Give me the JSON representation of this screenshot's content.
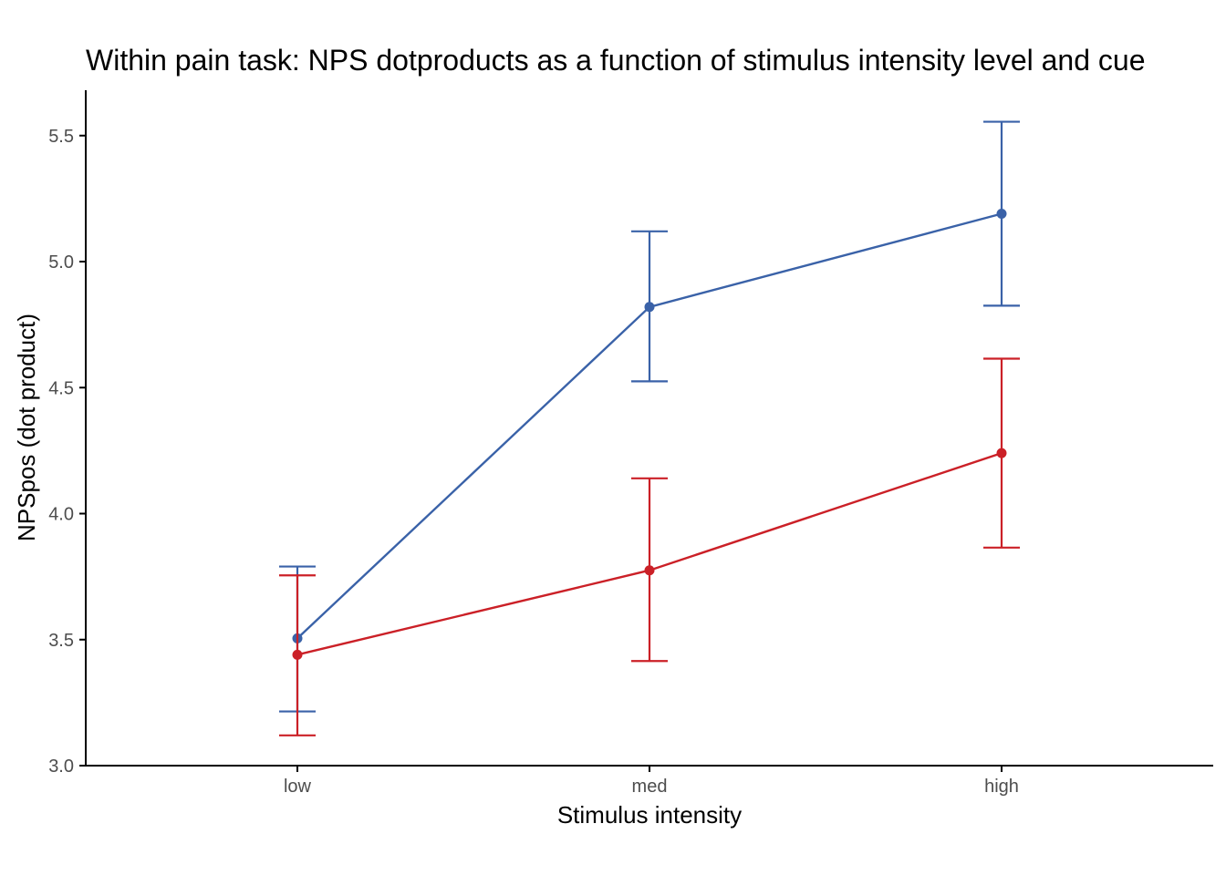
{
  "chart_data": {
    "type": "line",
    "title": "Within pain task: NPS dotproducts as a function of stimulus intensity level and cue",
    "xlabel": "Stimulus intensity",
    "ylabel": "NPSpos (dot product)",
    "categories": [
      "low",
      "med",
      "high"
    ],
    "ylim": [
      3.0,
      5.68
    ],
    "yticks": [
      3.0,
      3.5,
      4.0,
      4.5,
      5.0,
      5.5
    ],
    "ytick_labels": [
      "3.0",
      "3.5",
      "4.0",
      "4.5",
      "5.0",
      "5.5"
    ],
    "grid": false,
    "legend": "none",
    "series": [
      {
        "color": "#3a62a8",
        "values": [
          3.505,
          4.82,
          5.19
        ],
        "lower": [
          3.215,
          4.525,
          4.825
        ],
        "upper": [
          3.79,
          5.12,
          5.555
        ]
      },
      {
        "color": "#cb2027",
        "values": [
          3.44,
          3.775,
          4.24
        ],
        "lower": [
          3.12,
          3.415,
          3.865
        ],
        "upper": [
          3.755,
          4.14,
          4.615
        ]
      }
    ]
  }
}
